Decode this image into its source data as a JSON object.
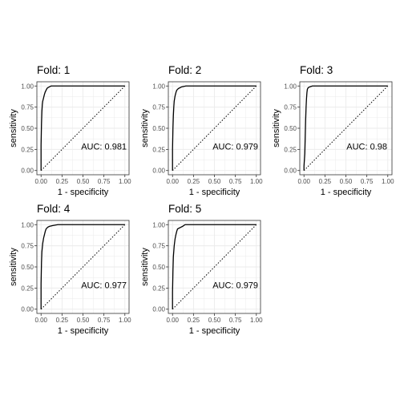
{
  "chart_data": [
    {
      "type": "line",
      "title": "Fold: 1",
      "xlabel": "1 - specificity",
      "ylabel": "sensitivity",
      "xlim": [
        0,
        1
      ],
      "ylim": [
        0,
        1
      ],
      "x_ticks": [
        "0.00",
        "0.25",
        "0.50",
        "0.75",
        "1.00"
      ],
      "y_ticks": [
        "0.00",
        "0.25",
        "0.50",
        "0.75",
        "1.00"
      ],
      "annotation": "AUC: 0.981",
      "auc": 0.981,
      "grid": true,
      "series": [
        {
          "points": [
            [
              0,
              0
            ],
            [
              0,
              0.3
            ],
            [
              0.005,
              0.55
            ],
            [
              0.01,
              0.7
            ],
            [
              0.015,
              0.78
            ],
            [
              0.02,
              0.82
            ],
            [
              0.03,
              0.86
            ],
            [
              0.04,
              0.9
            ],
            [
              0.05,
              0.93
            ],
            [
              0.06,
              0.95
            ],
            [
              0.07,
              0.97
            ],
            [
              0.08,
              0.98
            ],
            [
              0.1,
              0.99
            ],
            [
              0.12,
              1.0
            ],
            [
              1.0,
              1.0
            ]
          ]
        },
        {
          "points": [
            [
              0,
              0
            ],
            [
              1,
              1
            ]
          ],
          "style": "dotted"
        }
      ]
    },
    {
      "type": "line",
      "title": "Fold: 2",
      "xlabel": "1 - specificity",
      "ylabel": "sensitivity",
      "xlim": [
        0,
        1
      ],
      "ylim": [
        0,
        1
      ],
      "x_ticks": [
        "0.00",
        "0.25",
        "0.50",
        "0.75",
        "1.00"
      ],
      "y_ticks": [
        "0.00",
        "0.25",
        "0.50",
        "0.75",
        "1.00"
      ],
      "annotation": "AUC: 0.979",
      "auc": 0.979,
      "grid": true,
      "series": [
        {
          "points": [
            [
              0,
              0
            ],
            [
              0,
              0.25
            ],
            [
              0.005,
              0.5
            ],
            [
              0.01,
              0.65
            ],
            [
              0.015,
              0.75
            ],
            [
              0.02,
              0.82
            ],
            [
              0.03,
              0.88
            ],
            [
              0.04,
              0.92
            ],
            [
              0.05,
              0.95
            ],
            [
              0.07,
              0.97
            ],
            [
              0.09,
              0.98
            ],
            [
              0.11,
              0.99
            ],
            [
              0.16,
              1.0
            ],
            [
              1.0,
              1.0
            ]
          ]
        },
        {
          "points": [
            [
              0,
              0
            ],
            [
              1,
              1
            ]
          ],
          "style": "dotted"
        }
      ]
    },
    {
      "type": "line",
      "title": "Fold: 3",
      "xlabel": "1 - specificity",
      "ylabel": "sensitivity",
      "xlim": [
        0,
        1
      ],
      "ylim": [
        0,
        1
      ],
      "x_ticks": [
        "0.00",
        "0.25",
        "0.50",
        "0.75",
        "1.00"
      ],
      "y_ticks": [
        "0.00",
        "0.25",
        "0.50",
        "0.75",
        "1.00"
      ],
      "annotation": "AUC: 0.98",
      "auc": 0.98,
      "grid": true,
      "series": [
        {
          "points": [
            [
              0,
              0
            ],
            [
              0,
              0.05
            ],
            [
              0.01,
              0.2
            ],
            [
              0.015,
              0.4
            ],
            [
              0.02,
              0.6
            ],
            [
              0.025,
              0.75
            ],
            [
              0.03,
              0.85
            ],
            [
              0.035,
              0.92
            ],
            [
              0.04,
              0.96
            ],
            [
              0.05,
              0.98
            ],
            [
              0.07,
              0.99
            ],
            [
              0.1,
              1.0
            ],
            [
              1.0,
              1.0
            ]
          ]
        },
        {
          "points": [
            [
              0,
              0
            ],
            [
              1,
              1
            ]
          ],
          "style": "dotted"
        }
      ]
    },
    {
      "type": "line",
      "title": "Fold: 4",
      "xlabel": "1 - specificity",
      "ylabel": "sensitivity",
      "xlim": [
        0,
        1
      ],
      "ylim": [
        0,
        1
      ],
      "x_ticks": [
        "0.00",
        "0.25",
        "0.50",
        "0.75",
        "1.00"
      ],
      "y_ticks": [
        "0.00",
        "0.25",
        "0.50",
        "0.75",
        "1.00"
      ],
      "annotation": "AUC: 0.977",
      "auc": 0.977,
      "grid": true,
      "series": [
        {
          "points": [
            [
              0,
              0
            ],
            [
              0,
              0.3
            ],
            [
              0.005,
              0.55
            ],
            [
              0.01,
              0.68
            ],
            [
              0.02,
              0.78
            ],
            [
              0.03,
              0.84
            ],
            [
              0.04,
              0.88
            ],
            [
              0.05,
              0.92
            ],
            [
              0.06,
              0.95
            ],
            [
              0.08,
              0.97
            ],
            [
              0.1,
              0.98
            ],
            [
              0.14,
              0.99
            ],
            [
              0.2,
              1.0
            ],
            [
              1.0,
              1.0
            ]
          ]
        },
        {
          "points": [
            [
              0,
              0
            ],
            [
              1,
              1
            ]
          ],
          "style": "dotted"
        }
      ]
    },
    {
      "type": "line",
      "title": "Fold: 5",
      "xlabel": "1 - specificity",
      "ylabel": "sensitivity",
      "xlim": [
        0,
        1
      ],
      "ylim": [
        0,
        1
      ],
      "x_ticks": [
        "0.00",
        "0.25",
        "0.50",
        "0.75",
        "1.00"
      ],
      "y_ticks": [
        "0.00",
        "0.25",
        "0.50",
        "0.75",
        "1.00"
      ],
      "annotation": "AUC: 0.979",
      "auc": 0.979,
      "grid": true,
      "series": [
        {
          "points": [
            [
              0,
              0
            ],
            [
              0,
              0.2
            ],
            [
              0.005,
              0.45
            ],
            [
              0.01,
              0.62
            ],
            [
              0.02,
              0.75
            ],
            [
              0.03,
              0.83
            ],
            [
              0.04,
              0.88
            ],
            [
              0.05,
              0.92
            ],
            [
              0.06,
              0.95
            ],
            [
              0.08,
              0.96
            ],
            [
              0.1,
              0.97
            ],
            [
              0.12,
              0.98
            ],
            [
              0.15,
              1.0
            ],
            [
              1.0,
              1.0
            ]
          ]
        },
        {
          "points": [
            [
              0,
              0
            ],
            [
              1,
              1
            ]
          ],
          "style": "dotted"
        }
      ]
    }
  ],
  "colors": {
    "roc_line": "#000000",
    "diagonal": "#000000",
    "grid": "#ebebeb",
    "panel_border": "#333333",
    "background": "#ffffff"
  }
}
